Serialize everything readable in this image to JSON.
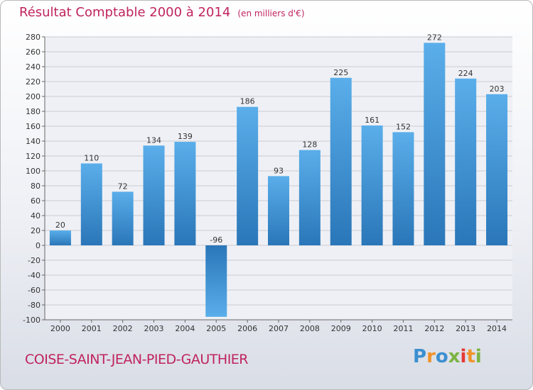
{
  "chart_data": {
    "type": "bar",
    "title": "Résultat Comptable 2000 à 2014",
    "unit": "(en milliers d'€)",
    "categories": [
      "2000",
      "2001",
      "2002",
      "2003",
      "2004",
      "2005",
      "2006",
      "2007",
      "2008",
      "2009",
      "2010",
      "2011",
      "2012",
      "2013",
      "2014"
    ],
    "values": [
      20,
      110,
      72,
      134,
      139,
      -96,
      186,
      93,
      128,
      225,
      161,
      152,
      272,
      224,
      203
    ],
    "ylim": [
      -100,
      280
    ],
    "yticks": [
      -100,
      -80,
      -60,
      -40,
      -20,
      0,
      20,
      40,
      60,
      80,
      100,
      120,
      140,
      160,
      180,
      200,
      220,
      240,
      260,
      280
    ],
    "grid": true,
    "bar_color": "#3a8fd5",
    "title_color": "#c0235f"
  },
  "commune": "COISE-SAINT-JEAN-PIED-GAUTHIER",
  "logo": {
    "letters": [
      "P",
      "r",
      "o",
      "x",
      "i",
      "t",
      "i"
    ],
    "colors": [
      "#3c8fd0",
      "#f0932b",
      "#3c8fd0",
      "#7cb342",
      "#e53935",
      "#f0932b",
      "#7cb342"
    ]
  }
}
